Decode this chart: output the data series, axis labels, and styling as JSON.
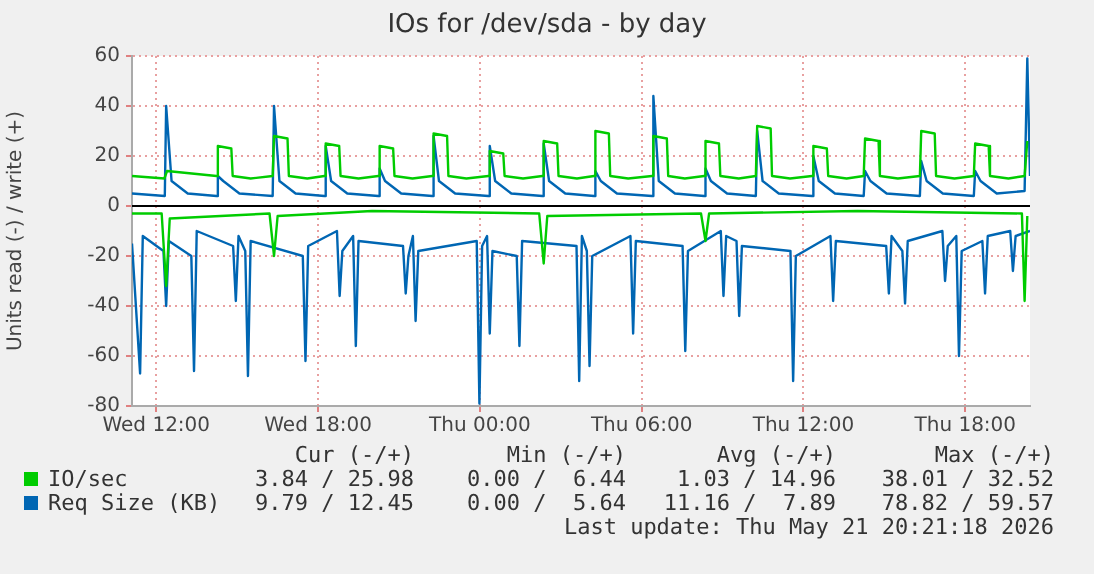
{
  "chart_data": {
    "type": "line",
    "title": "IOs for /dev/sda - by day",
    "ylabel": "Units read (-) / write (+)",
    "xlim": [
      "2026-05-20T11:06",
      "2026-05-21T20:24"
    ],
    "xticks": [
      {
        "value": "2026-05-20T12:00",
        "label": "Wed 12:00"
      },
      {
        "value": "2026-05-20T18:00",
        "label": "Wed 18:00"
      },
      {
        "value": "2026-05-21T00:00",
        "label": "Thu 00:00"
      },
      {
        "value": "2026-05-21T06:00",
        "label": "Thu 06:00"
      },
      {
        "value": "2026-05-21T12:00",
        "label": "Thu 12:00"
      },
      {
        "value": "2026-05-21T18:00",
        "label": "Thu 18:00"
      }
    ],
    "ylim": [
      -80,
      60
    ],
    "yticks": [
      -80,
      -60,
      -40,
      -20,
      0,
      20,
      40,
      60
    ],
    "grid": true,
    "legend": "bottom",
    "marker": "none",
    "line_style": "solid",
    "ref_lines": [
      {
        "axis": "y",
        "value": 0,
        "color": "#000000"
      }
    ],
    "series": [
      {
        "name": "IO/sec",
        "color": "#00cc00",
        "x": [
          "2026-05-20T11:06",
          "2026-05-20T12:18",
          "2026-05-20T12:24",
          "2026-05-20T14:14",
          "2026-05-20T14:17",
          "2026-05-20T14:47",
          "2026-05-20T14:50",
          "2026-05-20T15:30",
          "2026-05-20T16:19",
          "2026-05-20T16:22",
          "2026-05-20T16:52",
          "2026-05-20T16:55",
          "2026-05-20T17:36",
          "2026-05-20T18:14",
          "2026-05-20T18:17",
          "2026-05-20T18:47",
          "2026-05-20T18:50",
          "2026-05-20T19:30",
          "2026-05-20T20:14",
          "2026-05-20T20:17",
          "2026-05-20T20:47",
          "2026-05-20T20:50",
          "2026-05-20T21:30",
          "2026-05-20T22:14",
          "2026-05-20T22:17",
          "2026-05-20T22:47",
          "2026-05-20T22:50",
          "2026-05-20T23:30",
          "2026-05-21T00:19",
          "2026-05-21T00:22",
          "2026-05-21T00:52",
          "2026-05-21T00:55",
          "2026-05-21T01:36",
          "2026-05-21T02:19",
          "2026-05-21T02:22",
          "2026-05-21T02:52",
          "2026-05-21T02:55",
          "2026-05-21T03:36",
          "2026-05-21T04:14",
          "2026-05-21T04:17",
          "2026-05-21T04:47",
          "2026-05-21T04:50",
          "2026-05-21T05:30",
          "2026-05-21T06:23",
          "2026-05-21T06:26",
          "2026-05-21T06:56",
          "2026-05-21T06:59",
          "2026-05-21T07:36",
          "2026-05-21T08:19",
          "2026-05-21T08:22",
          "2026-05-21T08:52",
          "2026-05-21T08:55",
          "2026-05-21T09:36",
          "2026-05-21T10:14",
          "2026-05-21T10:17",
          "2026-05-21T10:47",
          "2026-05-21T10:50",
          "2026-05-21T11:30",
          "2026-05-21T12:19",
          "2026-05-21T12:22",
          "2026-05-21T12:52",
          "2026-05-21T12:55",
          "2026-05-21T13:36",
          "2026-05-21T14:14",
          "2026-05-21T14:17",
          "2026-05-21T14:47",
          "2026-05-21T14:50",
          "2026-05-21T15:30",
          "2026-05-21T16:19",
          "2026-05-21T16:22",
          "2026-05-21T16:52",
          "2026-05-21T16:55",
          "2026-05-21T17:36",
          "2026-05-21T18:19",
          "2026-05-21T18:22",
          "2026-05-21T18:52",
          "2026-05-21T18:55",
          "2026-05-21T19:36",
          "2026-05-21T20:12",
          "2026-05-21T20:18"
        ],
        "values": [
          12,
          11,
          14,
          12,
          24,
          23,
          12,
          11,
          12,
          28,
          27,
          12,
          11,
          12,
          25,
          24,
          12,
          11,
          12,
          24,
          23,
          12,
          11,
          12,
          29,
          28,
          12,
          11,
          12,
          22,
          21,
          12,
          11,
          12,
          26,
          25,
          12,
          11,
          12,
          30,
          29,
          12,
          11,
          12,
          28,
          27,
          12,
          11,
          12,
          26,
          25,
          12,
          11,
          12,
          32,
          31,
          12,
          11,
          12,
          24,
          23,
          12,
          11,
          12,
          27,
          26,
          12,
          11,
          12,
          30,
          29,
          12,
          11,
          12,
          25,
          24,
          12,
          11,
          12,
          26
        ]
      },
      {
        "color": "#00cc00",
        "x": [
          "2026-05-20T11:06",
          "2026-05-20T12:12",
          "2026-05-20T12:22",
          "2026-05-20T12:30",
          "2026-05-20T16:12",
          "2026-05-20T16:22",
          "2026-05-20T16:30",
          "2026-05-20T20:00",
          "2026-05-21T02:12",
          "2026-05-21T02:22",
          "2026-05-21T02:30",
          "2026-05-21T08:12",
          "2026-05-21T08:22",
          "2026-05-21T08:30",
          "2026-05-21T14:00",
          "2026-05-21T20:06",
          "2026-05-21T20:12",
          "2026-05-21T20:18"
        ],
        "values": [
          -3,
          -3,
          -32,
          -5,
          -3,
          -20,
          -4,
          -2,
          -3,
          -23,
          -4,
          -3,
          -14,
          -3,
          -2,
          -3,
          -38,
          -4
        ]
      },
      {
        "name": "Req Size (KB)",
        "color": "#0066b3",
        "x": [
          "2026-05-20T11:06",
          "2026-05-20T12:19",
          "2026-05-20T12:22",
          "2026-05-20T12:34",
          "2026-05-20T13:10",
          "2026-05-20T14:14",
          "2026-05-20T14:17",
          "2026-05-20T14:29",
          "2026-05-20T15:05",
          "2026-05-20T16:19",
          "2026-05-20T16:22",
          "2026-05-20T16:34",
          "2026-05-20T17:10",
          "2026-05-20T18:14",
          "2026-05-20T18:17",
          "2026-05-20T18:29",
          "2026-05-20T19:05",
          "2026-05-20T20:14",
          "2026-05-20T20:17",
          "2026-05-20T20:29",
          "2026-05-20T21:05",
          "2026-05-20T22:14",
          "2026-05-20T22:17",
          "2026-05-20T22:29",
          "2026-05-20T23:05",
          "2026-05-21T00:19",
          "2026-05-21T00:22",
          "2026-05-21T00:34",
          "2026-05-21T01:10",
          "2026-05-21T02:19",
          "2026-05-21T02:22",
          "2026-05-21T02:34",
          "2026-05-21T03:10",
          "2026-05-21T04:14",
          "2026-05-21T04:17",
          "2026-05-21T04:29",
          "2026-05-21T05:05",
          "2026-05-21T06:23",
          "2026-05-21T06:26",
          "2026-05-21T06:38",
          "2026-05-21T07:14",
          "2026-05-21T08:19",
          "2026-05-21T08:22",
          "2026-05-21T08:34",
          "2026-05-21T09:10",
          "2026-05-21T10:14",
          "2026-05-21T10:17",
          "2026-05-21T10:29",
          "2026-05-21T11:05",
          "2026-05-21T12:19",
          "2026-05-21T12:22",
          "2026-05-21T12:34",
          "2026-05-21T13:10",
          "2026-05-21T14:14",
          "2026-05-21T14:17",
          "2026-05-21T14:29",
          "2026-05-21T15:05",
          "2026-05-21T16:19",
          "2026-05-21T16:22",
          "2026-05-21T16:34",
          "2026-05-21T17:10",
          "2026-05-21T18:19",
          "2026-05-21T18:22",
          "2026-05-21T18:34",
          "2026-05-21T19:10",
          "2026-05-21T20:12",
          "2026-05-21T20:18",
          "2026-05-21T20:24"
        ],
        "values": [
          5,
          4,
          40,
          10,
          5,
          4,
          12,
          10,
          5,
          4,
          40,
          10,
          5,
          4,
          24,
          10,
          5,
          4,
          15,
          10,
          5,
          4,
          28,
          10,
          5,
          4,
          24,
          10,
          5,
          4,
          25,
          10,
          5,
          4,
          14,
          10,
          5,
          4,
          44,
          10,
          5,
          4,
          15,
          10,
          5,
          4,
          30,
          10,
          5,
          4,
          20,
          10,
          5,
          4,
          14,
          10,
          5,
          4,
          18,
          10,
          5,
          4,
          14,
          10,
          5,
          6,
          59,
          12
        ]
      },
      {
        "color": "#0066b3",
        "x": [
          "2026-05-20T11:06",
          "2026-05-20T11:24",
          "2026-05-20T11:30",
          "2026-05-20T12:16",
          "2026-05-20T12:22",
          "2026-05-20T12:28",
          "2026-05-20T13:18",
          "2026-05-20T13:24",
          "2026-05-20T13:30",
          "2026-05-20T14:51",
          "2026-05-20T14:57",
          "2026-05-20T15:03",
          "2026-05-20T15:18",
          "2026-05-20T15:24",
          "2026-05-20T15:30",
          "2026-05-20T17:26",
          "2026-05-20T17:32",
          "2026-05-20T17:38",
          "2026-05-20T18:42",
          "2026-05-20T18:48",
          "2026-05-20T18:54",
          "2026-05-20T19:18",
          "2026-05-20T19:24",
          "2026-05-20T19:30",
          "2026-05-20T21:09",
          "2026-05-20T21:15",
          "2026-05-20T21:21",
          "2026-05-20T21:31",
          "2026-05-20T21:37",
          "2026-05-20T21:43",
          "2026-05-20T23:53",
          "2026-05-20T23:59",
          "2026-05-21T00:05",
          "2026-05-21T00:16",
          "2026-05-21T00:22",
          "2026-05-21T00:28",
          "2026-05-21T01:22",
          "2026-05-21T01:28",
          "2026-05-21T01:34",
          "2026-05-21T03:35",
          "2026-05-21T03:41",
          "2026-05-21T03:47",
          "2026-05-21T03:58",
          "2026-05-21T04:04",
          "2026-05-21T04:10",
          "2026-05-21T05:35",
          "2026-05-21T05:41",
          "2026-05-21T05:47",
          "2026-05-21T07:31",
          "2026-05-21T07:37",
          "2026-05-21T07:43",
          "2026-05-21T08:56",
          "2026-05-21T09:02",
          "2026-05-21T09:08",
          "2026-05-21T09:31",
          "2026-05-21T09:37",
          "2026-05-21T09:43",
          "2026-05-21T11:31",
          "2026-05-21T11:37",
          "2026-05-21T11:43",
          "2026-05-21T13:00",
          "2026-05-21T13:06",
          "2026-05-21T13:12",
          "2026-05-21T15:04",
          "2026-05-21T15:10",
          "2026-05-21T15:16",
          "2026-05-21T15:40",
          "2026-05-21T15:46",
          "2026-05-21T15:52",
          "2026-05-21T17:09",
          "2026-05-21T17:15",
          "2026-05-21T17:21",
          "2026-05-21T17:40",
          "2026-05-21T17:46",
          "2026-05-21T17:52",
          "2026-05-21T18:38",
          "2026-05-21T18:44",
          "2026-05-21T18:50",
          "2026-05-21T19:40",
          "2026-05-21T19:46",
          "2026-05-21T19:52",
          "2026-05-21T20:24"
        ],
        "values": [
          -15,
          -67,
          -12,
          -18,
          -40,
          -14,
          -20,
          -66,
          -10,
          -16,
          -38,
          -12,
          -18,
          -68,
          -14,
          -20,
          -62,
          -16,
          -10,
          -36,
          -18,
          -12,
          -56,
          -14,
          -16,
          -35,
          -20,
          -12,
          -46,
          -18,
          -14,
          -79,
          -16,
          -12,
          -51,
          -18,
          -20,
          -56,
          -14,
          -16,
          -70,
          -12,
          -18,
          -64,
          -20,
          -12,
          -51,
          -14,
          -16,
          -58,
          -18,
          -10,
          -36,
          -12,
          -14,
          -44,
          -16,
          -18,
          -70,
          -20,
          -12,
          -38,
          -14,
          -16,
          -35,
          -12,
          -18,
          -39,
          -14,
          -10,
          -30,
          -16,
          -12,
          -60,
          -18,
          -14,
          -35,
          -12,
          -10,
          -26,
          -12,
          -10
        ]
      }
    ],
    "annotations": [
      "Cur (-/+)",
      "Min (-/+)",
      "Avg (-/+)",
      "Max (-/+)",
      "3.84 / 25.98",
      "0.00 /  6.44",
      "1.03 / 14.96",
      "38.01 / 32.52",
      "9.79 / 12.45",
      "0.00 /  5.64",
      "11.16 /  7.89",
      "78.82 / 59.57",
      "Last update: Thu May 21 20:21:18 2026"
    ]
  }
}
